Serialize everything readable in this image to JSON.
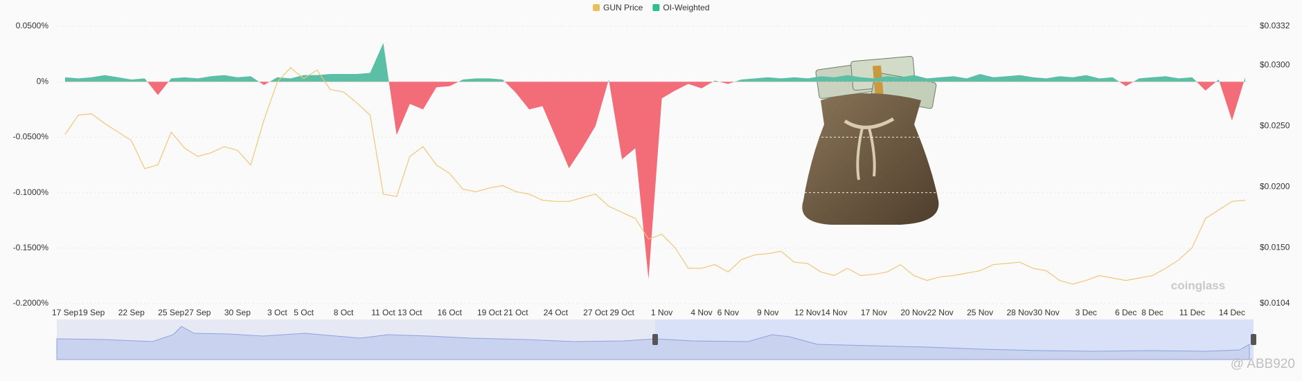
{
  "chart_data": {
    "type": "area-line",
    "categories": [
      "17 Sep",
      null,
      "19 Sep",
      null,
      null,
      "22 Sep",
      null,
      null,
      "25 Sep",
      null,
      "27 Sep",
      null,
      null,
      "30 Sep",
      null,
      null,
      "3 Oct",
      null,
      "5 Oct",
      null,
      null,
      "8 Oct",
      null,
      null,
      "11 Oct",
      null,
      "13 Oct",
      null,
      null,
      "16 Oct",
      null,
      null,
      "19 Oct",
      null,
      "21 Oct",
      null,
      null,
      "24 Oct",
      null,
      null,
      "27 Oct",
      null,
      "29 Oct",
      null,
      null,
      "1 Nov",
      null,
      null,
      "4 Nov",
      null,
      "6 Nov",
      null,
      null,
      "9 Nov",
      null,
      null,
      "12 Nov",
      null,
      "14 Nov",
      null,
      null,
      "17 Nov",
      null,
      null,
      "20 Nov",
      null,
      "22 Nov",
      null,
      null,
      "25 Nov",
      null,
      null,
      "28 Nov",
      null,
      "30 Nov",
      null,
      null,
      "3 Dec",
      null,
      null,
      "6 Dec",
      null,
      "8 Dec",
      null,
      null,
      "11 Dec",
      null,
      null,
      "14 Dec",
      null
    ],
    "series": [
      {
        "name": "GUN Price",
        "color": "#e9bf5c",
        "line_color": "#f0c77a",
        "axis": "y2",
        "values": [
          0.0243,
          0.0259,
          0.026,
          0.0252,
          0.0245,
          0.0238,
          0.0215,
          0.0218,
          0.0245,
          0.0232,
          0.0225,
          0.0228,
          0.0233,
          0.023,
          0.0218,
          0.0255,
          0.0286,
          0.0298,
          0.0289,
          0.0296,
          0.028,
          0.0278,
          0.0269,
          0.0259,
          0.0194,
          0.0192,
          0.0225,
          0.0233,
          0.0218,
          0.0211,
          0.0198,
          0.0196,
          0.0199,
          0.0201,
          0.0196,
          0.0194,
          0.0189,
          0.0188,
          0.0188,
          0.0191,
          0.0194,
          0.0184,
          0.0179,
          0.0174,
          0.0157,
          0.0161,
          0.015,
          0.0133,
          0.0133,
          0.0136,
          0.013,
          0.014,
          0.0144,
          0.0145,
          0.0147,
          0.0138,
          0.0137,
          0.013,
          0.0127,
          0.0133,
          0.0127,
          0.0128,
          0.013,
          0.0136,
          0.0127,
          0.0123,
          0.0126,
          0.0127,
          0.0129,
          0.0131,
          0.0136,
          0.0137,
          0.0138,
          0.0133,
          0.0131,
          0.0123,
          0.012,
          0.0123,
          0.0127,
          0.0125,
          0.0123,
          0.0125,
          0.0127,
          0.0133,
          0.014,
          0.015,
          0.0174,
          0.0181,
          0.0188,
          0.0189
        ]
      },
      {
        "name": "OI-Weighted",
        "color": "#2dbf8f",
        "positive_color": "#5bbfa6",
        "negative_color": "#f26d78",
        "values": [
          0.004,
          0.003,
          0.004,
          0.006,
          0.004,
          0.002,
          0.003,
          -0.012,
          0.003,
          0.004,
          0.003,
          0.005,
          0.006,
          0.004,
          0.005,
          -0.003,
          0.004,
          0.003,
          0.006,
          0.006,
          0.007,
          0.007,
          0.007,
          0.008,
          0.035,
          -0.048,
          -0.02,
          -0.025,
          -0.005,
          -0.004,
          0.002,
          0.003,
          0.003,
          0.002,
          -0.01,
          -0.025,
          -0.022,
          -0.05,
          -0.078,
          -0.06,
          -0.04,
          0.002,
          -0.07,
          -0.06,
          -0.178,
          -0.015,
          -0.008,
          -0.002,
          -0.006,
          0.001,
          -0.002,
          0.002,
          0.003,
          0.004,
          0.003,
          0.004,
          0.003,
          0.005,
          0.004,
          0.006,
          0.004,
          0.003,
          0.005,
          0.004,
          0.006,
          0.003,
          0.004,
          0.005,
          0.003,
          0.007,
          0.004,
          0.005,
          0.006,
          0.004,
          0.003,
          0.005,
          0.004,
          0.006,
          0.003,
          0.004,
          -0.004,
          0.003,
          0.004,
          0.005,
          0.003,
          0.004,
          -0.008,
          0.002,
          -0.035,
          0.004
        ]
      }
    ],
    "ylim": [
      -0.2,
      0.05
    ],
    "yticks": [
      {
        "value": 0.05,
        "label": "0.0500%"
      },
      {
        "value": 0,
        "label": "0%"
      },
      {
        "value": -0.05,
        "label": "-0.0500%"
      },
      {
        "value": -0.1,
        "label": "-0.1000%"
      },
      {
        "value": -0.15,
        "label": "-0.1500%"
      },
      {
        "value": -0.2,
        "label": "-0.2000%"
      }
    ],
    "y2lim": [
      0.0104,
      0.0332
    ],
    "y2ticks": [
      {
        "value": 0.0332,
        "label": "$0.0332"
      },
      {
        "value": 0.03,
        "label": "$0.0300"
      },
      {
        "value": 0.025,
        "label": "$0.0250"
      },
      {
        "value": 0.02,
        "label": "$0.0200"
      },
      {
        "value": 0.015,
        "label": "$0.0150"
      },
      {
        "value": 0.0104,
        "label": "$0.0104"
      }
    ],
    "grid": true,
    "legend": "top",
    "watermark": "coinglass",
    "credit": "@ ABB920"
  }
}
